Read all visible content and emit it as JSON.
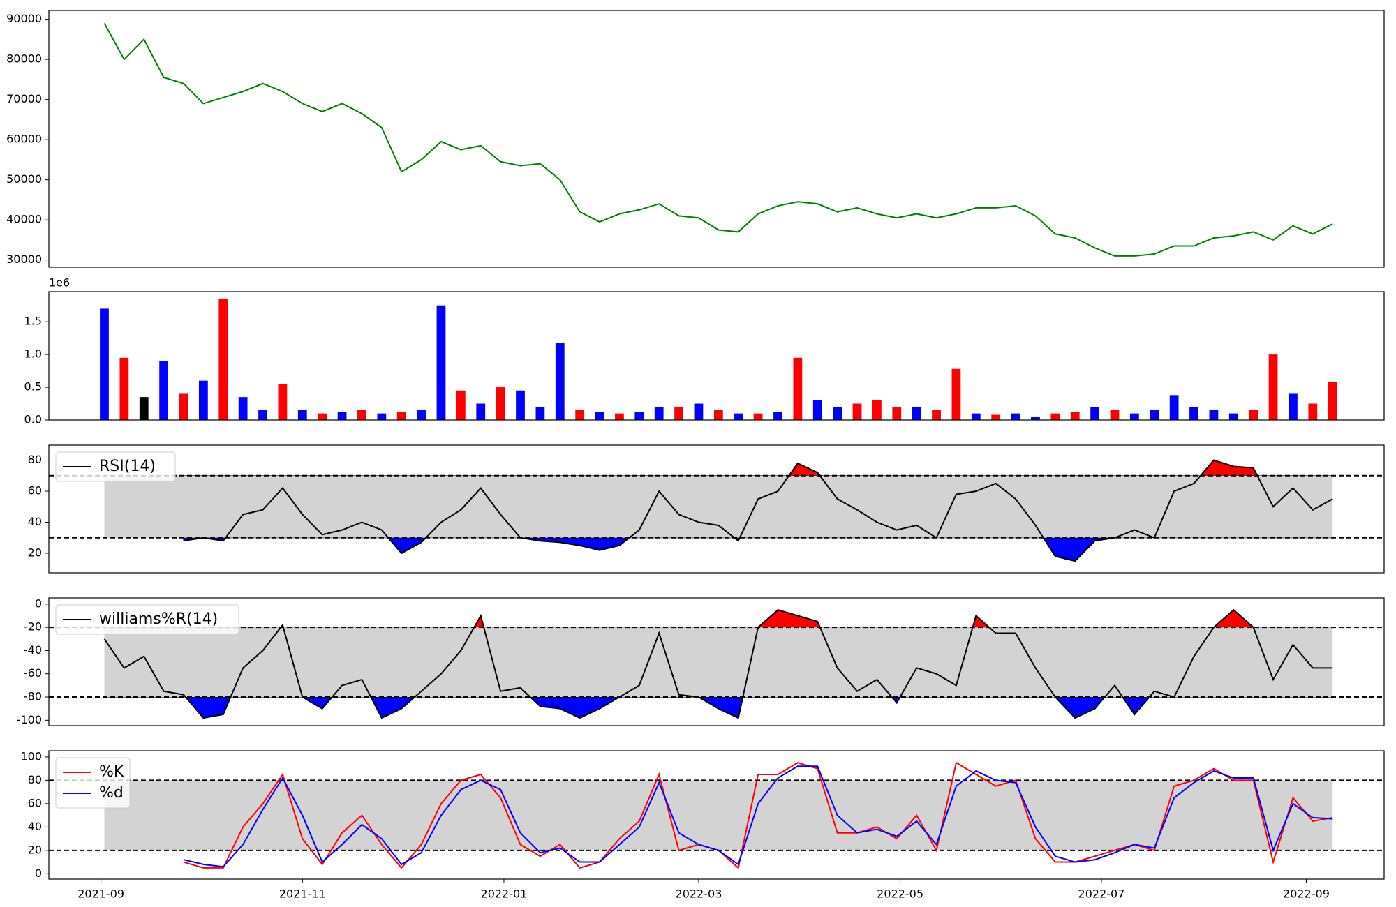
{
  "chart_data": [
    {
      "type": "line",
      "xlim": [
        -2.8,
        64.6
      ],
      "ylim": [
        28200,
        92200
      ],
      "yticks": [
        30000,
        40000,
        50000,
        60000,
        70000,
        80000,
        90000
      ],
      "series": [
        {
          "color": "#008000",
          "values": [
            89000,
            80000,
            85000,
            75500,
            74000,
            69000,
            70500,
            72000,
            74000,
            72000,
            69000,
            67000,
            69000,
            66500,
            63000,
            52000,
            55000,
            59500,
            57500,
            58500,
            54500,
            53500,
            54000,
            50000,
            42000,
            39500,
            41500,
            42500,
            44000,
            41000,
            40500,
            37500,
            37000,
            41500,
            43500,
            44500,
            44000,
            42000,
            43000,
            41500,
            40500,
            41500,
            40500,
            41500,
            43000,
            43000,
            43500,
            41000,
            36500,
            35500,
            33000,
            31000,
            31000,
            31500,
            33500,
            33500,
            35500,
            36000,
            37000,
            35000,
            38500,
            36500,
            39000
          ]
        }
      ]
    },
    {
      "type": "bar",
      "xlim": [
        -2.8,
        64.6
      ],
      "ylim": [
        0,
        1960000
      ],
      "offset_label": "1e6",
      "yticks": [
        {
          "value": 0,
          "label": "0.0"
        },
        {
          "value": 500000,
          "label": "0.5"
        },
        {
          "value": 1000000,
          "label": "1.0"
        },
        {
          "value": 1500000,
          "label": "1.5"
        }
      ],
      "values": [
        1700000,
        950000,
        350000,
        900000,
        400000,
        600000,
        1850000,
        350000,
        150000,
        550000,
        150000,
        100000,
        120000,
        150000,
        100000,
        120000,
        150000,
        1750000,
        450000,
        250000,
        500000,
        450000,
        200000,
        1180000,
        150000,
        120000,
        100000,
        120000,
        200000,
        200000,
        250000,
        150000,
        100000,
        100000,
        120000,
        950000,
        300000,
        200000,
        250000,
        300000,
        200000,
        200000,
        150000,
        780000,
        100000,
        80000,
        100000,
        50000,
        100000,
        120000,
        200000,
        150000,
        100000,
        150000,
        380000,
        200000,
        150000,
        100000,
        150000,
        1000000,
        400000,
        250000,
        580000
      ],
      "colors": [
        "#0000ff",
        "#ff0000",
        "#000000",
        "#0000ff",
        "#ff0000",
        "#0000ff",
        "#ff0000",
        "#0000ff",
        "#0000ff",
        "#ff0000",
        "#0000ff",
        "#ff0000",
        "#0000ff",
        "#ff0000",
        "#0000ff",
        "#ff0000",
        "#0000ff",
        "#0000ff",
        "#ff0000",
        "#0000ff",
        "#ff0000",
        "#0000ff",
        "#0000ff",
        "#0000ff",
        "#ff0000",
        "#0000ff",
        "#ff0000",
        "#0000ff",
        "#0000ff",
        "#ff0000",
        "#0000ff",
        "#ff0000",
        "#0000ff",
        "#ff0000",
        "#0000ff",
        "#ff0000",
        "#0000ff",
        "#0000ff",
        "#ff0000",
        "#ff0000",
        "#ff0000",
        "#0000ff",
        "#ff0000",
        "#ff0000",
        "#0000ff",
        "#ff0000",
        "#0000ff",
        "#0000ff",
        "#ff0000",
        "#ff0000",
        "#0000ff",
        "#ff0000",
        "#0000ff",
        "#0000ff",
        "#0000ff",
        "#0000ff",
        "#0000ff",
        "#0000ff",
        "#ff0000",
        "#ff0000",
        "#0000ff",
        "#ff0000",
        "#ff0000"
      ]
    },
    {
      "type": "oscillator",
      "xlim": [
        -2.8,
        64.6
      ],
      "ylim": [
        7.4,
        89.7
      ],
      "yticks": [
        20,
        40,
        60,
        80
      ],
      "levels": [
        30,
        70
      ],
      "band_color": "#d3d3d3",
      "over_color": "#ff0000",
      "under_color": "#0000ff",
      "legend": "upper left",
      "series": [
        {
          "name": "RSI(14)",
          "color": "#000000",
          "values": [
            null,
            null,
            null,
            null,
            28,
            30,
            28,
            45,
            48,
            62,
            45,
            32,
            35,
            40,
            35,
            20,
            27,
            40,
            48,
            62,
            45,
            30,
            28,
            27,
            25,
            22,
            25,
            35,
            60,
            45,
            40,
            38,
            28,
            55,
            60,
            78,
            72,
            55,
            48,
            40,
            35,
            38,
            30,
            58,
            60,
            65,
            55,
            38,
            18,
            15,
            28,
            30,
            35,
            30,
            60,
            65,
            80,
            76,
            75,
            50,
            62,
            48,
            55
          ]
        }
      ]
    },
    {
      "type": "oscillator",
      "xlim": [
        -2.8,
        64.6
      ],
      "ylim": [
        -104.6,
        5.3
      ],
      "yticks": [
        -100,
        -80,
        -60,
        -40,
        -20,
        0
      ],
      "levels": [
        -80,
        -20
      ],
      "band_color": "#d3d3d3",
      "over_color": "#ff0000",
      "under_color": "#0000ff",
      "legend": "upper left",
      "series": [
        {
          "name": "williams%R(14)",
          "color": "#000000",
          "values": [
            -30,
            -55,
            -45,
            -75,
            -78,
            -98,
            -95,
            -55,
            -40,
            -18,
            -80,
            -90,
            -70,
            -65,
            -98,
            -90,
            -75,
            -60,
            -40,
            -10,
            -75,
            -72,
            -88,
            -90,
            -98,
            -90,
            -80,
            -70,
            -25,
            -78,
            -80,
            -90,
            -98,
            -20,
            -5,
            -10,
            -15,
            -55,
            -75,
            -65,
            -85,
            -55,
            -60,
            -70,
            -10,
            -25,
            -25,
            -55,
            -80,
            -98,
            -90,
            -70,
            -95,
            -75,
            -80,
            -45,
            -20,
            -5,
            -20,
            -65,
            -35,
            -55,
            -55
          ]
        }
      ]
    },
    {
      "type": "oscillator",
      "xlim": [
        -2.8,
        64.6
      ],
      "ylim": [
        -4.6,
        105.3
      ],
      "yticks": [
        0,
        20,
        40,
        60,
        80,
        100
      ],
      "levels": [
        20,
        80
      ],
      "band_color": "#d3d3d3",
      "legend": "upper left",
      "xticks": [
        {
          "value": -0.17,
          "label": "2021-09"
        },
        {
          "value": 10.0,
          "label": "2021-11"
        },
        {
          "value": 20.17,
          "label": "2022-01"
        },
        {
          "value": 30.0,
          "label": "2022-03"
        },
        {
          "value": 40.17,
          "label": "2022-05"
        },
        {
          "value": 50.33,
          "label": "2022-07"
        },
        {
          "value": 60.67,
          "label": "2022-09"
        }
      ],
      "series": [
        {
          "name": "%K",
          "color": "#ff0000",
          "values": [
            null,
            null,
            null,
            null,
            10,
            5,
            5,
            40,
            60,
            85,
            30,
            8,
            35,
            50,
            25,
            5,
            25,
            60,
            80,
            85,
            65,
            25,
            15,
            25,
            5,
            10,
            30,
            45,
            85,
            20,
            25,
            20,
            5,
            85,
            85,
            95,
            90,
            35,
            35,
            40,
            30,
            50,
            20,
            95,
            85,
            75,
            80,
            30,
            10,
            10,
            15,
            20,
            25,
            20,
            75,
            80,
            90,
            80,
            80,
            10,
            65,
            45,
            48
          ]
        },
        {
          "name": "%d",
          "color": "#0000ff",
          "values": [
            null,
            null,
            null,
            null,
            12,
            8,
            6,
            25,
            55,
            82,
            50,
            10,
            25,
            42,
            30,
            8,
            18,
            50,
            72,
            80,
            72,
            35,
            18,
            22,
            10,
            10,
            25,
            40,
            78,
            35,
            25,
            20,
            8,
            60,
            82,
            92,
            92,
            50,
            35,
            38,
            32,
            45,
            25,
            75,
            88,
            80,
            78,
            40,
            15,
            10,
            12,
            18,
            25,
            22,
            65,
            78,
            88,
            82,
            82,
            20,
            60,
            48,
            47
          ]
        }
      ]
    }
  ]
}
